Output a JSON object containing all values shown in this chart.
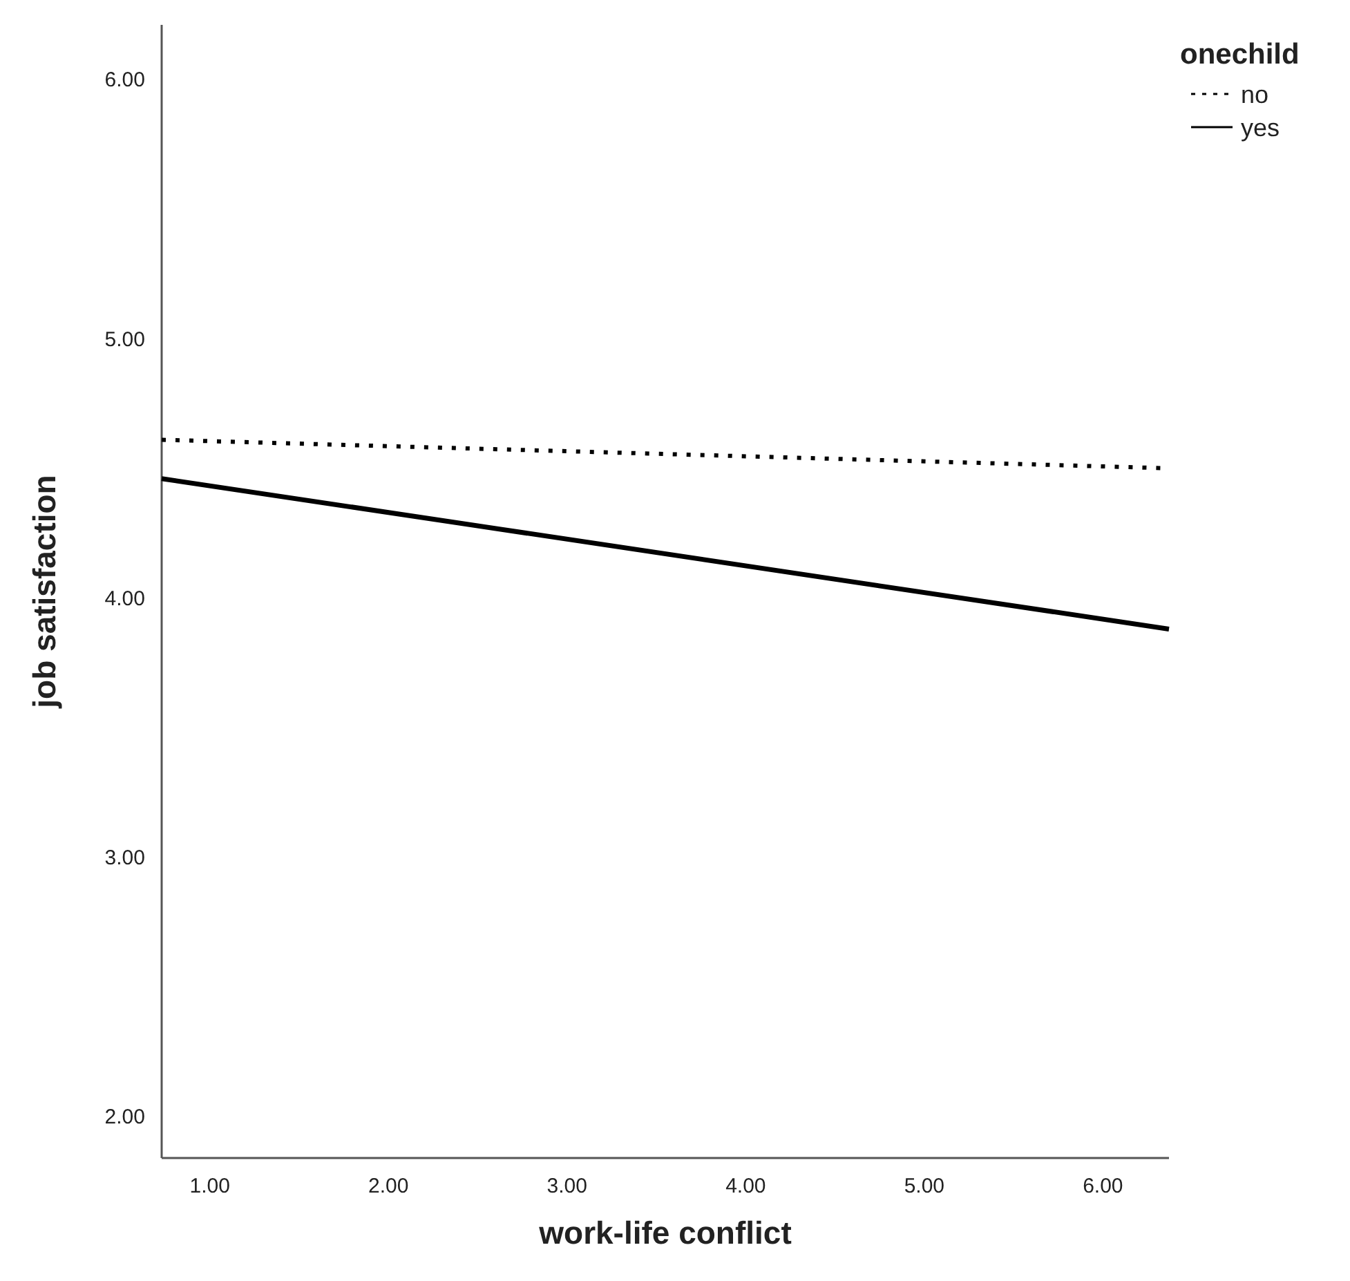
{
  "chart_data": {
    "type": "line",
    "xlabel": "work-life conflict",
    "ylabel": "job satisfaction",
    "legend_title": "onechild",
    "legend": "top right",
    "marker": "none",
    "grid": false,
    "xlim": [
      0.73,
      6.37
    ],
    "xticks": [
      {
        "value": 1,
        "label": "1.00"
      },
      {
        "value": 2,
        "label": "2.00"
      },
      {
        "value": 3,
        "label": "3.00"
      },
      {
        "value": 4,
        "label": "4.00"
      },
      {
        "value": 5,
        "label": "5.00"
      },
      {
        "value": 6,
        "label": "6.00"
      }
    ],
    "ylim": [
      1.84,
      6.21
    ],
    "yticks": [
      {
        "value": 2,
        "label": "2.00"
      },
      {
        "value": 3,
        "label": "3.00"
      },
      {
        "value": 4,
        "label": "4.00"
      },
      {
        "value": 5,
        "label": "5.00"
      },
      {
        "value": 6,
        "label": "6.00"
      }
    ],
    "x": [
      0.73,
      6.37
    ],
    "series": [
      {
        "name": "no",
        "color": "#000000",
        "line_style": "dotted",
        "values": [
          4.61,
          4.5
        ]
      },
      {
        "name": "yes",
        "color": "#000000",
        "line_style": "solid",
        "values": [
          4.46,
          3.88
        ]
      }
    ]
  }
}
